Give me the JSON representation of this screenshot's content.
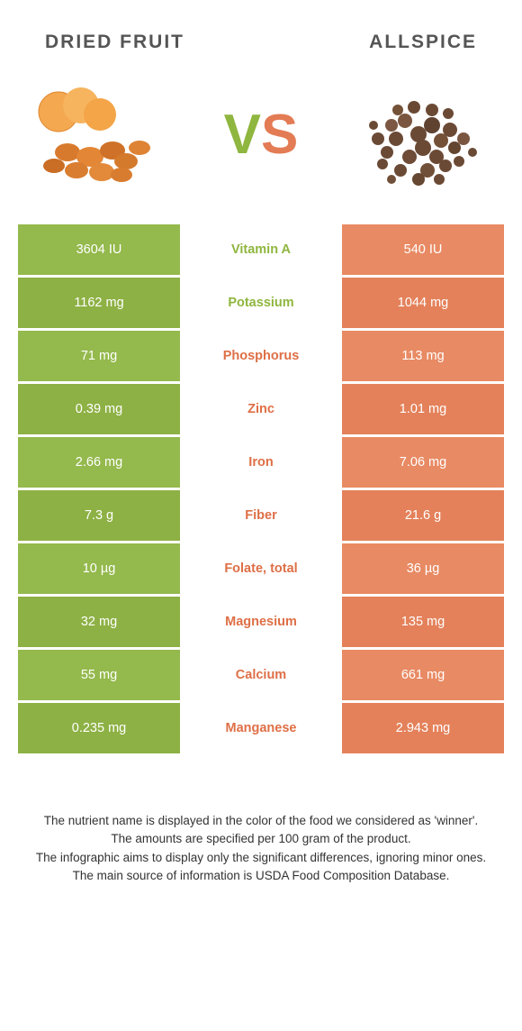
{
  "header": {
    "left_title": "DRIED FRUIT",
    "right_title": "ALLSPICE",
    "vs_v": "V",
    "vs_s": "S"
  },
  "colors": {
    "green_even": "#94b94c",
    "green_odd": "#8db144",
    "orange_even": "#e88a63",
    "orange_odd": "#e4815a",
    "mid_green": "#8fb63f",
    "mid_orange": "#de6f46",
    "title_color": "#555555",
    "footer_color": "#333333",
    "background": "#ffffff"
  },
  "rows": [
    {
      "left": "3604 IU",
      "mid": "Vitamin A",
      "right": "540 IU",
      "winner": "left"
    },
    {
      "left": "1162 mg",
      "mid": "Potassium",
      "right": "1044 mg",
      "winner": "left"
    },
    {
      "left": "71 mg",
      "mid": "Phosphorus",
      "right": "113 mg",
      "winner": "right"
    },
    {
      "left": "0.39 mg",
      "mid": "Zinc",
      "right": "1.01 mg",
      "winner": "right"
    },
    {
      "left": "2.66 mg",
      "mid": "Iron",
      "right": "7.06 mg",
      "winner": "right"
    },
    {
      "left": "7.3 g",
      "mid": "Fiber",
      "right": "21.6 g",
      "winner": "right"
    },
    {
      "left": "10 µg",
      "mid": "Folate, total",
      "right": "36 µg",
      "winner": "right"
    },
    {
      "left": "32 mg",
      "mid": "Magnesium",
      "right": "135 mg",
      "winner": "right"
    },
    {
      "left": "55 mg",
      "mid": "Calcium",
      "right": "661 mg",
      "winner": "right"
    },
    {
      "left": "0.235 mg",
      "mid": "Manganese",
      "right": "2.943 mg",
      "winner": "right"
    }
  ],
  "footer": {
    "line1": "The nutrient name is displayed in the color of the food we considered as 'winner'.",
    "line2": "The amounts are specified per 100 gram of the product.",
    "line3": "The infographic aims to display only the significant differences, ignoring minor ones.",
    "line4": "The main source of information is USDA Food Composition Database."
  }
}
